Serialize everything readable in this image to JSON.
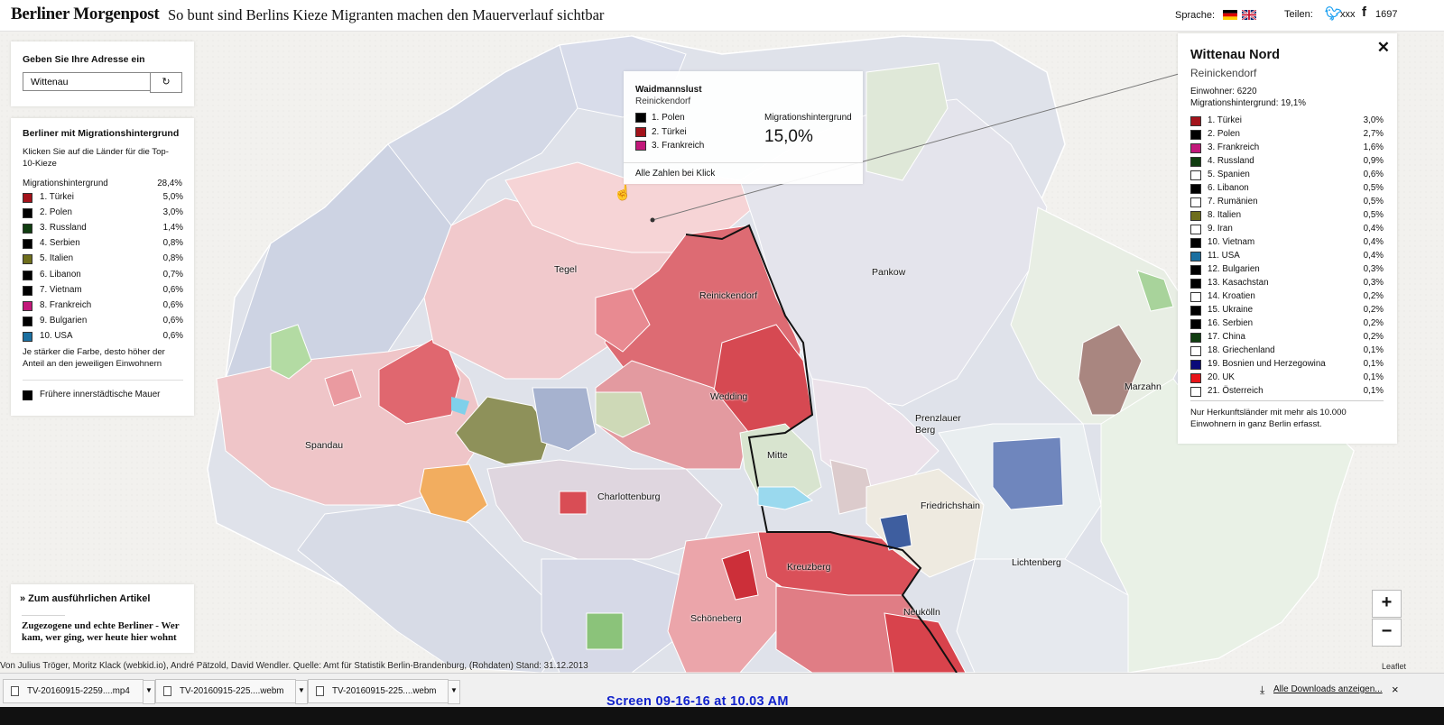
{
  "header": {
    "logo": "Berliner Morgenpost",
    "headline": "So bunt sind Berlins Kieze Migranten machen den Mauerverlauf sichtbar",
    "language_label": "Sprache:",
    "share_label": "Teilen:",
    "twitter_count": "xxx",
    "facebook_count": "1697"
  },
  "address": {
    "title": "Geben Sie Ihre Adresse ein",
    "value": "Wittenau",
    "button_icon": "refresh-icon"
  },
  "legend": {
    "title": "Berliner mit Migrationshintergrund",
    "hint": "Klicken Sie auf die Länder für die Top-10-Kieze",
    "total_label": "Migrationshintergrund",
    "total_value": "28,4%",
    "items": [
      {
        "name": "1. Türkei",
        "pct": "5,0%",
        "color": "#a3131b"
      },
      {
        "name": "2. Polen",
        "pct": "3,0%",
        "color": "#000000"
      },
      {
        "name": "3. Russland",
        "pct": "1,4%",
        "color": "#103d10"
      },
      {
        "name": "4. Serbien",
        "pct": "0,8%",
        "color": "#000000"
      },
      {
        "name": "5. Italien",
        "pct": "0,8%",
        "color": "#6e6e1c"
      },
      {
        "name": "6. Libanon",
        "pct": "0,7%",
        "color": "#000000"
      },
      {
        "name": "7. Vietnam",
        "pct": "0,6%",
        "color": "#000000"
      },
      {
        "name": "8. Frankreich",
        "pct": "0,6%",
        "color": "#c2187a"
      },
      {
        "name": "9. Bulgarien",
        "pct": "0,6%",
        "color": "#000000"
      },
      {
        "name": "10. USA",
        "pct": "0,6%",
        "color": "#1b6fa0"
      }
    ],
    "note": "Je stärker die Farbe, desto höher der Anteil an den jeweiligen Einwohnern",
    "wall_label": "Frühere innerstädtische Mauer"
  },
  "article": {
    "link": "» Zum ausführlichen Artikel",
    "headline": "Zugezogene und echte Berliner - Wer kam, wer ging, wer heute hier wohnt"
  },
  "tooltip": {
    "title": "Waidmannslust",
    "district": "Reinickendorf",
    "items": [
      {
        "name": "1. Polen",
        "color": "#000000"
      },
      {
        "name": "2. Türkei",
        "color": "#a3131b"
      },
      {
        "name": "3. Frankreich",
        "color": "#c2187a"
      }
    ],
    "mig_label": "Migrationshintergrund",
    "mig_value": "15,0%",
    "footer": "Alle Zahlen bei Klick"
  },
  "detail": {
    "title": "Wittenau Nord",
    "district": "Reinickendorf",
    "residents": "Einwohner: 6220",
    "migration": "Migrationshintergrund: 19,1%",
    "items": [
      {
        "name": "1. Türkei",
        "pct": "3,0%",
        "color": "#a3131b"
      },
      {
        "name": "2. Polen",
        "pct": "2,7%",
        "color": "#000000"
      },
      {
        "name": "3. Frankreich",
        "pct": "1,6%",
        "color": "#c2187a"
      },
      {
        "name": "4. Russland",
        "pct": "0,9%",
        "color": "#103d10"
      },
      {
        "name": "5. Spanien",
        "pct": "0,6%",
        "color": "#ffffff"
      },
      {
        "name": "6. Libanon",
        "pct": "0,5%",
        "color": "#000000"
      },
      {
        "name": "7. Rumänien",
        "pct": "0,5%",
        "color": "#ffffff"
      },
      {
        "name": "8. Italien",
        "pct": "0,5%",
        "color": "#6e6e1c"
      },
      {
        "name": "9. Iran",
        "pct": "0,4%",
        "color": "#ffffff"
      },
      {
        "name": "10. Vietnam",
        "pct": "0,4%",
        "color": "#000000"
      },
      {
        "name": "11. USA",
        "pct": "0,4%",
        "color": "#1b6fa0"
      },
      {
        "name": "12. Bulgarien",
        "pct": "0,3%",
        "color": "#000000"
      },
      {
        "name": "13. Kasachstan",
        "pct": "0,3%",
        "color": "#000000"
      },
      {
        "name": "14. Kroatien",
        "pct": "0,2%",
        "color": "#ffffff"
      },
      {
        "name": "15. Ukraine",
        "pct": "0,2%",
        "color": "#000000"
      },
      {
        "name": "16. Serbien",
        "pct": "0,2%",
        "color": "#000000"
      },
      {
        "name": "17. China",
        "pct": "0,2%",
        "color": "#103d10"
      },
      {
        "name": "18. Griechenland",
        "pct": "0,1%",
        "color": "#ffffff"
      },
      {
        "name": "19. Bosnien und Herzegowina",
        "pct": "0,1%",
        "color": "#0a0a7a"
      },
      {
        "name": "20. UK",
        "pct": "0,1%",
        "color": "#e8141a"
      },
      {
        "name": "21. Österreich",
        "pct": "0,1%",
        "color": "#ffffff"
      }
    ],
    "note": "Nur Herkunftsländer mit mehr als 10.000 Einwohnern in ganz Berlin erfasst."
  },
  "map": {
    "places": [
      "Tegel",
      "Reinickendorf",
      "Pankow",
      "Wedding",
      "Spandau",
      "Prenzlauer Berg",
      "Marzahn",
      "Mitte",
      "Charlottenburg",
      "Friedrichshain",
      "Lichtenberg",
      "Kreuzberg",
      "Schöneberg",
      "Neukölln"
    ],
    "zoom_in": "+",
    "zoom_out": "−",
    "attribution": "Von Julius Tröger, Moritz Klack (webkid.io), André Pätzold, David Wendler. Quelle: Amt für Statistik Berlin-Brandenburg, (Rohdaten) Stand: 31.12.2013",
    "leaflet": "Leaflet"
  },
  "downloads": {
    "items": [
      "TV-20160915-2259....mp4",
      "TV-20160915-225....webm",
      "TV-20160915-225....webm"
    ],
    "show_all": "Alle Downloads anzeigen...",
    "close": "×"
  },
  "caption": "Screen 09-16-16 at 10.03 AM"
}
